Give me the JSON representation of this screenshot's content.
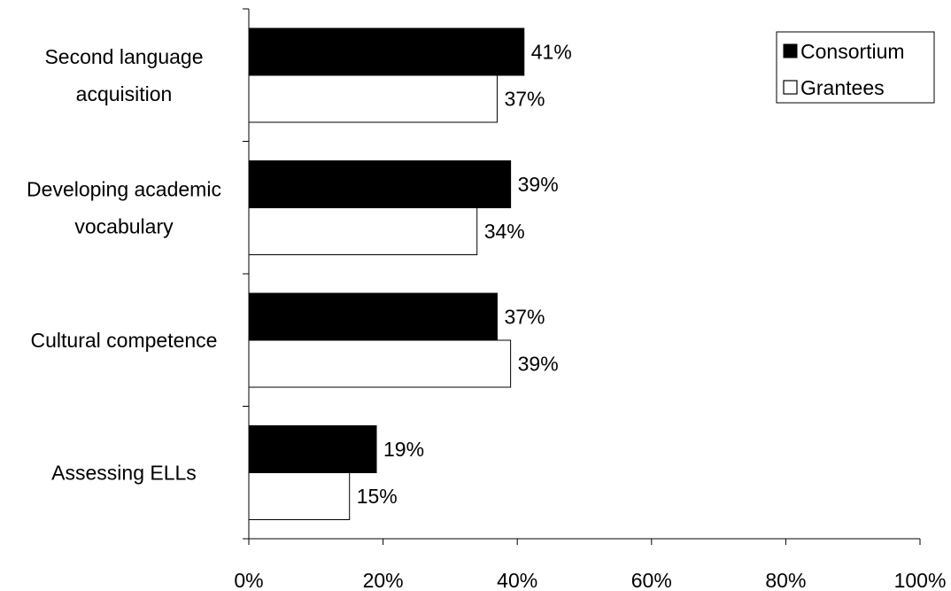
{
  "chart_data": {
    "type": "bar",
    "orientation": "horizontal",
    "categories": [
      [
        "Second language",
        "acquisition"
      ],
      [
        "Developing academic",
        "vocabulary"
      ],
      [
        "Cultural competence"
      ],
      [
        "Assessing ELLs"
      ]
    ],
    "series": [
      {
        "name": "Consortium",
        "values": [
          41,
          39,
          37,
          19
        ],
        "color": "#000000"
      },
      {
        "name": "Grantees",
        "values": [
          37,
          34,
          39,
          15
        ],
        "color": "#ffffff"
      }
    ],
    "data_labels": [
      [
        "41%",
        "39%",
        "37%",
        "19%"
      ],
      [
        "37%",
        "34%",
        "39%",
        "15%"
      ]
    ],
    "xlim": [
      0,
      100
    ],
    "x_ticks": [
      0,
      20,
      40,
      60,
      80,
      100
    ],
    "x_tick_labels": [
      "0%",
      "20%",
      "40%",
      "60%",
      "80%",
      "100%"
    ],
    "grid": false,
    "legend_position": "top-right"
  }
}
